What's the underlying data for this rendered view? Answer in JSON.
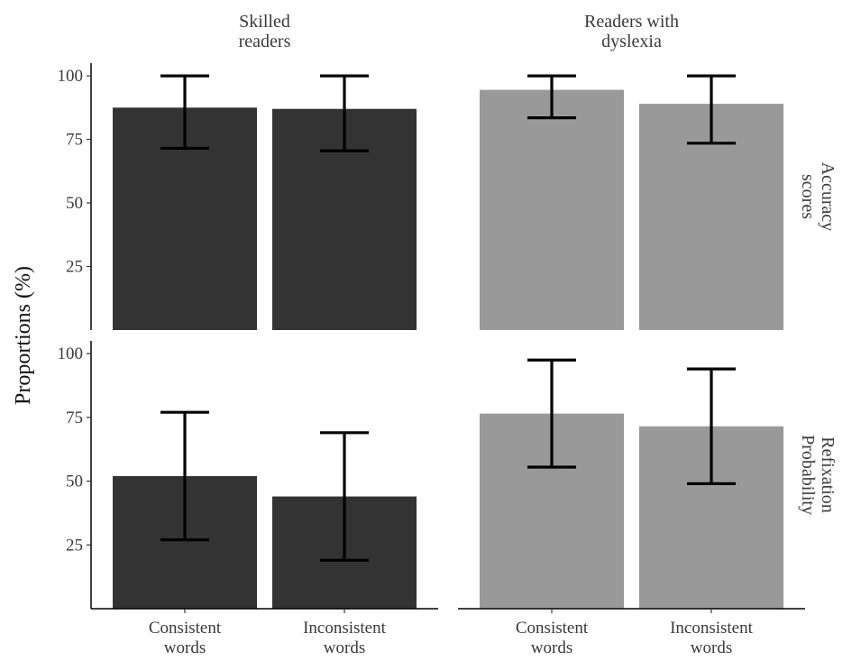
{
  "chart_data": {
    "type": "bar",
    "ylabel": "Proportions (%)",
    "ylim": [
      0,
      105
    ],
    "yticks": [
      25,
      50,
      75,
      100
    ],
    "categories": [
      "Consistent\nwords",
      "Inconsistent\nwords"
    ],
    "columns": [
      "Skilled\nreaders",
      "Readers with\ndyslexia"
    ],
    "rows": [
      "Accuracy\nscores",
      "Refixation\nProbability"
    ],
    "colors": {
      "Skilled\nreaders": "#333333",
      "Readers with\ndyslexia": "#999999"
    },
    "panels": [
      {
        "row": "Accuracy\nscores",
        "column": "Skilled\nreaders",
        "values": [
          87.5,
          87.0
        ],
        "error_low": [
          71.5,
          70.5
        ],
        "error_high": [
          100,
          100
        ]
      },
      {
        "row": "Accuracy\nscores",
        "column": "Readers with\ndyslexia",
        "values": [
          94.5,
          89.0
        ],
        "error_low": [
          83.5,
          73.5
        ],
        "error_high": [
          100,
          100
        ]
      },
      {
        "row": "Refixation\nProbability",
        "column": "Skilled\nreaders",
        "values": [
          52.0,
          44.0
        ],
        "error_low": [
          27.0,
          19.0
        ],
        "error_high": [
          77.0,
          69.0
        ]
      },
      {
        "row": "Refixation\nProbability",
        "column": "Readers with\ndyslexia",
        "values": [
          76.5,
          71.5
        ],
        "error_low": [
          55.5,
          49.0
        ],
        "error_high": [
          97.5,
          94.0
        ]
      }
    ],
    "grid": false,
    "legend": "none"
  }
}
